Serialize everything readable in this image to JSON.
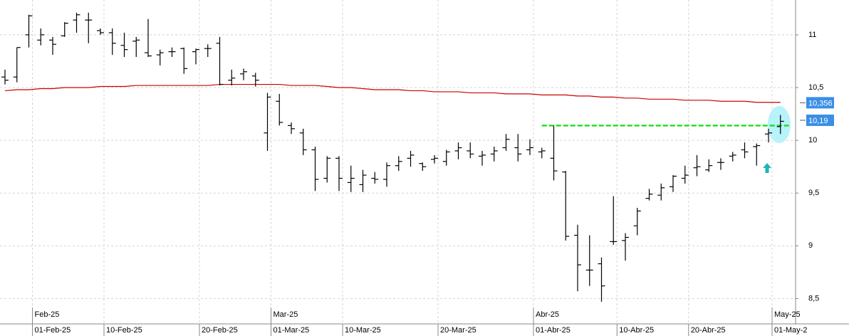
{
  "chart_data": {
    "type": "ohlc",
    "categories": [
      null,
      null,
      "01-Feb-25",
      null,
      null,
      null,
      null,
      null,
      "10-Feb-25",
      null,
      null,
      null,
      null,
      null,
      null,
      null,
      "20-Feb-25",
      null,
      null,
      null,
      null,
      null,
      "01-Mar-25",
      null,
      null,
      null,
      null,
      null,
      "10-Mar-25",
      null,
      null,
      null,
      null,
      null,
      null,
      null,
      "20-Mar-25",
      null,
      null,
      null,
      null,
      null,
      null,
      null,
      "01-Abr-25",
      null,
      null,
      null,
      null,
      null,
      null,
      "10-Abr-25",
      null,
      null,
      null,
      null,
      null,
      "20-Abr-25",
      null,
      null,
      null,
      null,
      null,
      null,
      "01-May-2",
      null
    ],
    "month_labels": [
      null,
      null,
      "Feb-25",
      null,
      null,
      null,
      null,
      null,
      null,
      null,
      null,
      null,
      null,
      null,
      null,
      null,
      null,
      null,
      null,
      null,
      null,
      null,
      "Mar-25",
      null,
      null,
      null,
      null,
      null,
      null,
      null,
      null,
      null,
      null,
      null,
      null,
      null,
      null,
      null,
      null,
      null,
      null,
      null,
      null,
      null,
      "Abr-25",
      null,
      null,
      null,
      null,
      null,
      null,
      null,
      null,
      null,
      null,
      null,
      null,
      null,
      null,
      null,
      null,
      null,
      null,
      null,
      "May-25",
      null
    ],
    "open": [
      10.6,
      10.6,
      11.0,
      10.95,
      10.95,
      10.99,
      11.14,
      11.14,
      11.04,
      11.02,
      10.9,
      10.94,
      10.83,
      10.81,
      10.84,
      10.87,
      10.84,
      10.87,
      10.92,
      10.57,
      10.63,
      10.61,
      10.07,
      10.37,
      10.14,
      10.07,
      9.91,
      9.64,
      9.83,
      9.6,
      9.58,
      9.64,
      9.63,
      9.76,
      9.83,
      9.78,
      9.82,
      9.8,
      9.9,
      9.9,
      9.85,
      9.87,
      9.93,
      9.93,
      9.91,
      9.89,
      9.83,
      9.7,
      9.1,
      8.77,
      8.83,
      9.04,
      9.05,
      9.19,
      9.45,
      9.48,
      9.56,
      9.64,
      9.74,
      9.72,
      9.79,
      9.85,
      9.91,
      9.94,
      10.06,
      10.13
    ],
    "high": [
      10.67,
      10.88,
      11.19,
      11.06,
      10.98,
      11.12,
      11.21,
      11.21,
      11.06,
      11.06,
      11.02,
      10.98,
      11.15,
      10.86,
      10.88,
      10.88,
      10.87,
      10.91,
      10.98,
      10.67,
      10.68,
      10.64,
      10.45,
      10.44,
      10.17,
      10.11,
      9.94,
      9.85,
      9.85,
      9.76,
      9.72,
      9.7,
      9.79,
      9.85,
      9.9,
      9.79,
      9.86,
      9.91,
      9.98,
      9.98,
      9.9,
      9.94,
      10.06,
      10.06,
      10.01,
      9.93,
      10.14,
      9.71,
      9.2,
      9.1,
      8.89,
      9.47,
      9.12,
      9.36,
      9.54,
      9.59,
      9.67,
      9.76,
      9.86,
      9.82,
      9.83,
      9.89,
      9.98,
      9.97,
      10.11,
      10.24
    ],
    "low": [
      10.53,
      10.55,
      10.88,
      10.9,
      10.81,
      10.98,
      11.02,
      10.92,
      11.0,
      10.81,
      10.79,
      10.79,
      10.79,
      10.71,
      10.79,
      10.63,
      10.72,
      10.79,
      10.52,
      10.52,
      10.57,
      10.51,
      9.9,
      10.14,
      10.06,
      9.86,
      9.52,
      9.6,
      9.52,
      9.51,
      9.51,
      9.59,
      9.56,
      9.71,
      9.75,
      9.71,
      9.78,
      9.76,
      9.82,
      9.83,
      9.76,
      9.8,
      9.9,
      9.8,
      9.86,
      9.83,
      9.62,
      9.05,
      8.57,
      8.62,
      8.47,
      9.01,
      8.86,
      9.1,
      9.43,
      9.43,
      9.51,
      9.59,
      9.66,
      9.7,
      9.72,
      9.8,
      9.83,
      9.76,
      9.98,
      10.06
    ],
    "close": [
      10.57,
      10.88,
      11.18,
      11.0,
      10.91,
      11.11,
      11.19,
      11.14,
      11.02,
      10.92,
      10.86,
      10.95,
      10.8,
      10.83,
      10.84,
      10.68,
      10.86,
      10.87,
      10.53,
      10.59,
      10.65,
      10.57,
      10.41,
      10.17,
      10.11,
      9.91,
      9.63,
      9.83,
      9.64,
      9.64,
      9.67,
      9.63,
      9.76,
      9.8,
      9.86,
      9.75,
      9.83,
      9.89,
      9.93,
      9.87,
      9.86,
      9.9,
      10.01,
      9.87,
      9.93,
      9.9,
      9.71,
      9.09,
      8.82,
      8.77,
      8.62,
      9.04,
      9.08,
      9.33,
      9.49,
      9.55,
      9.66,
      9.67,
      9.75,
      9.76,
      9.79,
      9.86,
      9.89,
      9.95,
      10.07,
      10.18
    ],
    "color": "#000000",
    "series": [
      {
        "color": "#cc0000",
        "style": "solid",
        "values": [
          10.47,
          10.48,
          10.48,
          10.49,
          10.49,
          10.5,
          10.5,
          10.5,
          10.51,
          10.51,
          10.51,
          10.52,
          10.52,
          10.52,
          10.52,
          10.52,
          10.52,
          10.52,
          10.53,
          10.53,
          10.53,
          10.53,
          10.53,
          10.53,
          10.52,
          10.52,
          10.52,
          10.51,
          10.5,
          10.5,
          10.49,
          10.48,
          10.48,
          10.48,
          10.47,
          10.47,
          10.46,
          10.46,
          10.46,
          10.45,
          10.45,
          10.45,
          10.44,
          10.44,
          10.44,
          10.43,
          10.43,
          10.43,
          10.42,
          10.42,
          10.41,
          10.41,
          10.4,
          10.4,
          10.39,
          10.39,
          10.39,
          10.38,
          10.38,
          10.38,
          10.37,
          10.37,
          10.37,
          10.36,
          10.36,
          10.36
        ]
      },
      {
        "color": "#22e022",
        "style": "dashed",
        "values": [
          null,
          null,
          null,
          null,
          null,
          null,
          null,
          null,
          null,
          null,
          null,
          null,
          null,
          null,
          null,
          null,
          null,
          null,
          null,
          null,
          null,
          null,
          null,
          null,
          null,
          null,
          null,
          null,
          null,
          null,
          null,
          null,
          null,
          null,
          null,
          null,
          null,
          null,
          null,
          null,
          null,
          null,
          null,
          null,
          null,
          10.14,
          10.14,
          10.14,
          10.14,
          10.14,
          10.14,
          10.14,
          10.14,
          10.14,
          10.14,
          10.14,
          10.14,
          10.14,
          10.14,
          10.14,
          10.14,
          10.14,
          10.14,
          10.14,
          10.14,
          10.14
        ]
      }
    ],
    "price_labels": [
      {
        "value": 10.356,
        "label": "10,356"
      },
      {
        "value": 10.19,
        "label": "10,19"
      }
    ],
    "price_label_color": "#3a8ee6",
    "ylim": [
      8.26,
      11.33
    ],
    "yticks": [
      11,
      {
        "value": 10.5,
        "label": "10,5"
      },
      10,
      {
        "value": 9.5,
        "label": "9,5"
      },
      9,
      {
        "value": 8.5,
        "label": "8,5"
      }
    ],
    "grid": true
  }
}
